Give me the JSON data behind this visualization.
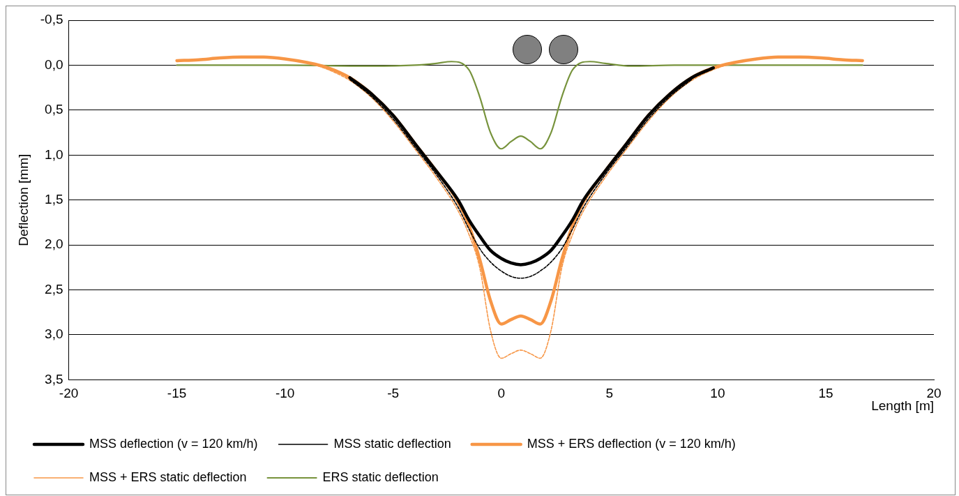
{
  "chart_data": {
    "type": "line",
    "xlabel": "Length [m]",
    "ylabel": "Deflection [mm]",
    "xlim": [
      -20,
      20
    ],
    "xticks": [
      -20,
      -15,
      -10,
      -5,
      0,
      5,
      10,
      15,
      20
    ],
    "ylim": [
      3.5,
      -0.5
    ],
    "yticks": [
      {
        "value": -0.5,
        "label": "-0,5"
      },
      {
        "value": 0,
        "label": "0,0"
      },
      {
        "value": 0.5,
        "label": "0,5"
      },
      {
        "value": 1,
        "label": "1,0"
      },
      {
        "value": 1.5,
        "label": "1,5"
      },
      {
        "value": 2,
        "label": "2,0"
      },
      {
        "value": 2.5,
        "label": "2,5"
      },
      {
        "value": 3,
        "label": "3,0"
      },
      {
        "value": 3.5,
        "label": "3,5"
      }
    ],
    "grid": "y",
    "legend": "bottom",
    "marker": "none",
    "x": [
      -15,
      -14,
      -13,
      -12,
      -11,
      -10,
      -9,
      -8,
      -7,
      -6,
      -5,
      -4,
      -3,
      -2,
      -1.5,
      -1,
      -0.5,
      0,
      0.45,
      0.9,
      1.35,
      1.8,
      2.3,
      2.8,
      3.3,
      3.8,
      4.8,
      5.8,
      6.8,
      7.8,
      8.8,
      9.8,
      10.8,
      11.8,
      12.8,
      13.8,
      14.8,
      15.8,
      16.7
    ],
    "series": [
      {
        "name": "MSS deflection (v = 120 km/h)",
        "color": "#000000",
        "line_style": "solid",
        "values": [
          null,
          null,
          null,
          null,
          null,
          null,
          null,
          null,
          0.14,
          0.32,
          0.56,
          0.87,
          1.18,
          1.5,
          1.72,
          1.9,
          2.06,
          2.15,
          2.2,
          2.22,
          2.2,
          2.15,
          2.06,
          1.9,
          1.72,
          1.5,
          1.18,
          0.87,
          0.56,
          0.32,
          0.14,
          0.03,
          null,
          null,
          null,
          null,
          null,
          null,
          null
        ]
      },
      {
        "name": "MSS static deflection",
        "color": "#000000",
        "line_style": "dashed",
        "values": [
          null,
          null,
          null,
          null,
          null,
          null,
          null,
          null,
          0.16,
          0.35,
          0.6,
          0.91,
          1.22,
          1.58,
          1.82,
          2.04,
          2.19,
          2.29,
          2.35,
          2.37,
          2.35,
          2.29,
          2.19,
          2.04,
          1.82,
          1.58,
          1.22,
          0.91,
          0.6,
          0.35,
          0.16,
          null,
          null,
          null,
          null,
          null,
          null,
          null,
          null
        ]
      },
      {
        "name": "MSS + ERS deflection (v = 120 km/h)",
        "color": "#f79646",
        "line_style": "solid",
        "values": [
          -0.05,
          -0.06,
          -0.08,
          -0.09,
          -0.09,
          -0.07,
          -0.03,
          0.03,
          0.14,
          0.32,
          0.56,
          0.87,
          1.18,
          1.52,
          1.78,
          2.16,
          2.62,
          2.88,
          2.83,
          2.79,
          2.83,
          2.88,
          2.62,
          2.16,
          1.78,
          1.52,
          1.18,
          0.87,
          0.56,
          0.32,
          0.14,
          0.03,
          -0.03,
          -0.07,
          -0.09,
          -0.09,
          -0.08,
          -0.06,
          -0.05
        ]
      },
      {
        "name": "MSS + ERS static deflection",
        "color": "#f79646",
        "line_style": "dashed",
        "values": [
          -0.05,
          -0.06,
          -0.08,
          -0.09,
          -0.09,
          -0.07,
          -0.03,
          0.05,
          0.17,
          0.36,
          0.62,
          0.93,
          1.25,
          1.62,
          1.88,
          2.25,
          2.95,
          3.26,
          3.21,
          3.17,
          3.21,
          3.26,
          2.95,
          2.25,
          1.88,
          1.62,
          1.25,
          0.93,
          0.62,
          0.36,
          0.17,
          0.05,
          -0.03,
          -0.07,
          -0.09,
          -0.09,
          -0.08,
          -0.06,
          -0.05
        ]
      },
      {
        "name": "ERS static deflection",
        "color": "#77933c",
        "line_style": "solid",
        "x": [
          -15,
          -10,
          -6,
          -4,
          -3,
          -2.3,
          -1.5,
          -1,
          -0.5,
          0,
          0.45,
          0.9,
          1.35,
          1.8,
          2.3,
          2.8,
          3.3,
          4.1,
          4.8,
          6,
          8,
          12,
          16.7
        ],
        "values": [
          0,
          0,
          0.01,
          0,
          -0.02,
          -0.04,
          0.05,
          0.35,
          0.75,
          0.93,
          0.85,
          0.79,
          0.85,
          0.93,
          0.75,
          0.35,
          0.05,
          -0.04,
          -0.02,
          0.01,
          0,
          0,
          0
        ]
      }
    ]
  }
}
